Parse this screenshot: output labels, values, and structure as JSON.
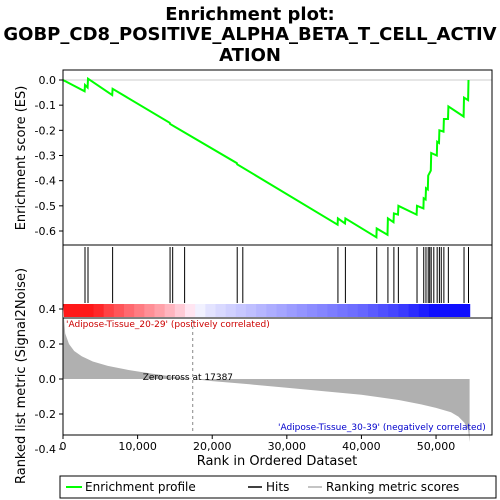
{
  "chart_data": {
    "type": "line",
    "title_lines": [
      "Enrichment plot:",
      "GOBP_CD8_POSITIVE_ALPHA_BETA_T_CELL_ACTIV",
      "ATION"
    ],
    "es_panel": {
      "ylabel": "Enrichment score (ES)",
      "ylim": [
        -0.66,
        0.04
      ],
      "yticks": [
        0.0,
        -0.1,
        -0.2,
        -0.3,
        -0.4,
        -0.5,
        -0.6
      ],
      "ytick_labels": [
        "0.0",
        "-0.1",
        "-0.2",
        "-0.3",
        "-0.4",
        "-0.5",
        "-0.6"
      ],
      "series": [
        {
          "name": "Enrichment profile",
          "color": "#00ff00",
          "x": [
            0,
            2900,
            2950,
            3300,
            3350,
            6600,
            6650,
            14300,
            14350,
            23300,
            23350,
            36800,
            36850,
            37800,
            37850,
            42000,
            42050,
            43500,
            43550,
            44300,
            44350,
            44900,
            44950,
            47400,
            47450,
            48300,
            48350,
            48600,
            48650,
            48900,
            48950,
            49300,
            49350,
            50100,
            50150,
            50400,
            50450,
            51000,
            51050,
            51600,
            51650,
            53700,
            53750,
            54300,
            54350
          ],
          "y": [
            0.0,
            -0.045,
            -0.02,
            -0.03,
            0.005,
            -0.06,
            -0.035,
            -0.17,
            -0.175,
            -0.33,
            -0.335,
            -0.575,
            -0.55,
            -0.57,
            -0.55,
            -0.625,
            -0.59,
            -0.615,
            -0.55,
            -0.565,
            -0.53,
            -0.535,
            -0.5,
            -0.535,
            -0.5,
            -0.51,
            -0.47,
            -0.475,
            -0.43,
            -0.435,
            -0.38,
            -0.36,
            -0.29,
            -0.3,
            -0.245,
            -0.25,
            -0.2,
            -0.205,
            -0.155,
            -0.155,
            -0.105,
            -0.145,
            -0.07,
            -0.08,
            0.0
          ]
        }
      ]
    },
    "hits": {
      "name": "Hits",
      "x": [
        2950,
        3350,
        6650,
        14350,
        14700,
        16300,
        23350,
        24100,
        36850,
        37850,
        42050,
        43550,
        44350,
        44950,
        47450,
        48350,
        48650,
        48950,
        49150,
        49350,
        49700,
        50150,
        50450,
        50700,
        51050,
        51650,
        53750,
        54350
      ]
    },
    "ranking_panel": {
      "ylabel": "Ranked list metric (Signal2Noise)",
      "xlabel": "Rank in Ordered Dataset",
      "ylim": [
        -0.44,
        0.48
      ],
      "yticks": [
        0.4,
        0.2,
        0.0,
        -0.2,
        -0.4
      ],
      "ytick_labels": [
        "0.4",
        "0.2",
        "0.0",
        "-0.2",
        "-0.4"
      ],
      "xlim": [
        0,
        57500
      ],
      "xticks": [
        0,
        10000,
        20000,
        30000,
        40000,
        50000
      ],
      "xtick_labels": [
        "0",
        "10,000",
        "20,000",
        "30,000",
        "40,000",
        "50,000"
      ],
      "metric_x": [
        0,
        300,
        800,
        1500,
        2500,
        4000,
        6000,
        9000,
        12000,
        15000,
        17387,
        20000,
        25000,
        30000,
        35000,
        40000,
        45000,
        48000,
        50000,
        52000,
        53000,
        53800,
        54300,
        54500
      ],
      "metric_y": [
        0.42,
        0.26,
        0.2,
        0.16,
        0.13,
        0.1,
        0.075,
        0.05,
        0.03,
        0.012,
        0.0,
        -0.012,
        -0.03,
        -0.05,
        -0.07,
        -0.09,
        -0.12,
        -0.145,
        -0.165,
        -0.19,
        -0.215,
        -0.25,
        -0.29,
        -0.36
      ],
      "color": "#b0b0b0",
      "zero_cross_label": "Zero cross at 17387",
      "zero_cross_x": 17387,
      "positive_label": "'Adipose-Tissue_20-29' (positively correlated)",
      "negative_label": "'Adipose-Tissue_30-39' (negatively correlated)"
    },
    "n_genes": 54500,
    "legend": [
      {
        "label": "Enrichment profile",
        "color": "#00ff00"
      },
      {
        "label": "Hits",
        "color": "#000000"
      },
      {
        "label": "Ranking metric scores",
        "color": "#b0b0b0"
      }
    ]
  }
}
